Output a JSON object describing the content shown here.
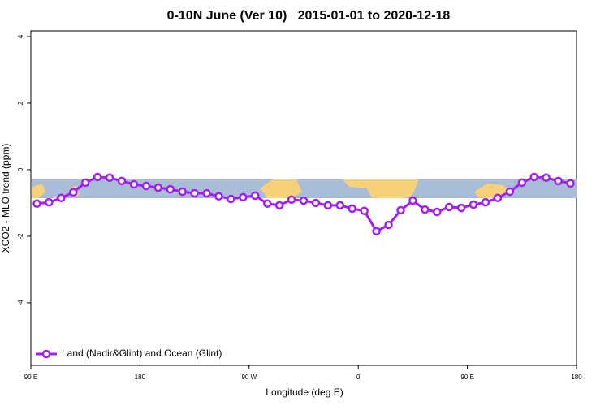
{
  "chart_data": {
    "type": "line",
    "title": "0-10N June (Ver 10)   2015-01-01 to 2020-12-18",
    "x_label": "Longitude (deg E)",
    "y_label": "XCO2 - MLO trend (ppm)",
    "x": [
      95,
      105,
      115,
      125,
      135,
      145,
      155,
      165,
      175,
      185,
      195,
      205,
      215,
      225,
      235,
      245,
      255,
      265,
      275,
      285,
      295,
      305,
      315,
      325,
      335,
      345,
      355,
      365,
      375,
      385,
      395,
      405,
      415,
      425,
      435,
      445,
      455,
      465,
      475,
      485,
      495,
      505,
      515,
      525,
      535
    ],
    "series": [
      {
        "name": "Land (Nadir&Glint) and Ocean (Glint)",
        "color": "#a020f0",
        "values": [
          -1.02,
          -0.98,
          -0.85,
          -0.68,
          -0.39,
          -0.22,
          -0.24,
          -0.34,
          -0.44,
          -0.49,
          -0.54,
          -0.59,
          -0.66,
          -0.71,
          -0.71,
          -0.8,
          -0.88,
          -0.83,
          -0.78,
          -1.02,
          -1.07,
          -0.9,
          -0.93,
          -1.0,
          -1.07,
          -1.07,
          -1.17,
          -1.24,
          -1.85,
          -1.66,
          -1.22,
          -0.93,
          -1.2,
          -1.27,
          -1.12,
          -1.15,
          -1.05,
          -0.98,
          -0.85,
          -0.66,
          -0.39,
          -0.22,
          -0.24,
          -0.34,
          -0.41
        ]
      }
    ],
    "xlim": [
      90,
      540
    ],
    "xticks": [
      {
        "value": 90,
        "label": "90 E"
      },
      180,
      {
        "value": 270,
        "label": "90 W"
      },
      {
        "value": 360,
        "label": "0"
      },
      {
        "value": 450,
        "label": "90 E"
      },
      {
        "value": 540,
        "label": "180"
      }
    ],
    "ylim": [
      -5.88,
      4.17
    ],
    "yticks": [
      -4,
      -2,
      0,
      2,
      4
    ],
    "legend": "bottom-left"
  }
}
